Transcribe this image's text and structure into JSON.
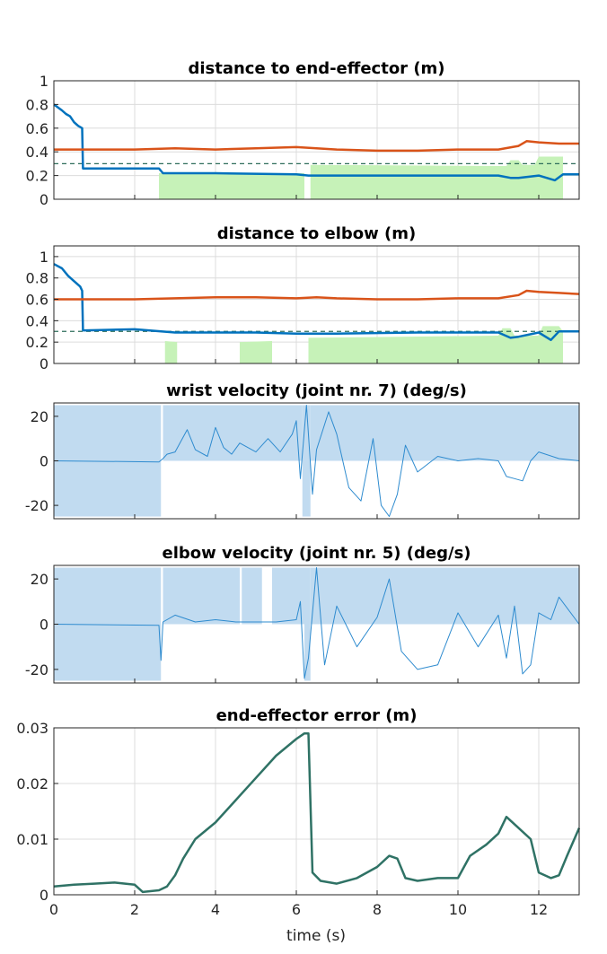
{
  "figure": {
    "xlabel": "time (s)",
    "xlim": [
      0,
      13
    ],
    "xticks": [
      0,
      2,
      4,
      6,
      8,
      10,
      12
    ]
  },
  "colors": {
    "blue": "#0072BD",
    "orange": "#D95319",
    "green_fill": "#c6f2b8",
    "blue_fill": "#c1dbf0",
    "blue_line": "#2e8bcf",
    "dashed": "#2f6e5b",
    "error_line": "#2f7265"
  },
  "chart_data": [
    {
      "type": "line",
      "title": "distance to end-effector (m)",
      "ylim": [
        0,
        1
      ],
      "yticks": [
        0,
        0.2,
        0.4,
        0.6,
        0.8,
        1
      ],
      "ytick_labels": [
        "0",
        "0.2",
        "0.4",
        "0.6",
        "0.8",
        "1"
      ],
      "grid": true,
      "threshold": 0.3,
      "shaded_regions": [
        {
          "x": [
            2.6,
            2.6,
            6.2,
            6.2
          ],
          "y": [
            0,
            0.22,
            0.22,
            0
          ]
        },
        {
          "x": [
            6.35,
            6.35,
            11.2,
            11.3,
            11.5,
            11.6,
            11.9,
            12.0,
            12.6,
            12.6
          ],
          "y": [
            0,
            0.29,
            0.28,
            0.33,
            0.33,
            0.29,
            0.29,
            0.36,
            0.36,
            0
          ]
        }
      ],
      "series": [
        {
          "x": [
            0,
            0.2,
            0.3,
            0.4,
            0.5,
            0.6,
            0.7,
            0.72,
            0.8,
            2.6,
            2.7,
            4,
            6,
            6.3,
            7,
            9,
            10,
            11,
            11.3,
            11.5,
            12,
            12.4,
            12.6,
            13
          ],
          "y": [
            0.8,
            0.75,
            0.72,
            0.7,
            0.65,
            0.62,
            0.6,
            0.26,
            0.26,
            0.26,
            0.22,
            0.22,
            0.21,
            0.2,
            0.2,
            0.2,
            0.2,
            0.2,
            0.18,
            0.18,
            0.2,
            0.16,
            0.21,
            0.21
          ]
        },
        {
          "x": [
            0,
            2,
            3,
            4,
            5,
            6,
            6.5,
            7,
            8,
            9,
            10,
            11,
            11.5,
            11.7,
            12,
            12.5,
            13
          ],
          "y": [
            0.42,
            0.42,
            0.43,
            0.42,
            0.43,
            0.44,
            0.43,
            0.42,
            0.41,
            0.41,
            0.42,
            0.42,
            0.45,
            0.49,
            0.48,
            0.47,
            0.47
          ]
        }
      ]
    },
    {
      "type": "line",
      "title": "distance to elbow (m)",
      "ylim": [
        0,
        1.1
      ],
      "yticks": [
        0,
        0.2,
        0.4,
        0.6,
        0.8,
        1
      ],
      "ytick_labels": [
        "0",
        "0.2",
        "0.4",
        "0.6",
        "0.8",
        "1"
      ],
      "grid": true,
      "threshold": 0.3,
      "shaded_regions": [
        {
          "x": [
            2.75,
            2.75,
            3.05,
            3.05
          ],
          "y": [
            0,
            0.21,
            0.2,
            0
          ]
        },
        {
          "x": [
            4.6,
            4.6,
            5.4,
            5.4
          ],
          "y": [
            0,
            0.2,
            0.21,
            0
          ]
        },
        {
          "x": [
            6.3,
            6.3,
            11.0,
            11.1,
            11.3,
            11.4,
            12.0,
            12.1,
            12.5,
            12.6,
            12.6
          ],
          "y": [
            0,
            0.24,
            0.26,
            0.33,
            0.33,
            0.26,
            0.26,
            0.35,
            0.35,
            0.3,
            0
          ]
        }
      ],
      "series": [
        {
          "x": [
            0,
            0.2,
            0.35,
            0.5,
            0.65,
            0.7,
            0.72,
            0.8,
            2,
            3,
            5,
            6,
            7,
            9,
            11,
            11.3,
            11.5,
            12,
            12.3,
            12.5,
            13
          ],
          "y": [
            0.93,
            0.89,
            0.82,
            0.77,
            0.72,
            0.68,
            0.31,
            0.31,
            0.32,
            0.29,
            0.29,
            0.28,
            0.28,
            0.29,
            0.29,
            0.24,
            0.25,
            0.29,
            0.22,
            0.3,
            0.3
          ]
        },
        {
          "x": [
            0,
            2,
            3,
            4,
            5,
            6,
            6.5,
            7,
            8,
            9,
            10,
            11,
            11.5,
            11.7,
            12,
            12.5,
            13
          ],
          "y": [
            0.6,
            0.6,
            0.61,
            0.62,
            0.62,
            0.61,
            0.62,
            0.61,
            0.6,
            0.6,
            0.61,
            0.61,
            0.64,
            0.68,
            0.67,
            0.66,
            0.65
          ]
        }
      ]
    },
    {
      "type": "area",
      "title": "wrist velocity (joint nr. 7) (deg/s)",
      "ylim": [
        -26,
        26
      ],
      "yticks": [
        -20,
        0,
        20
      ],
      "ytick_labels": [
        "-20",
        "0",
        "20"
      ],
      "grid": false,
      "bounds": [
        {
          "x": [
            0,
            2.65
          ],
          "upper": 25,
          "lower": -25
        },
        {
          "x": [
            2.7,
            6.15
          ],
          "upper": 25,
          "lower": 0
        },
        {
          "x": [
            6.15,
            6.35
          ],
          "upper": 25,
          "lower": -25
        },
        {
          "x": [
            6.35,
            13
          ],
          "upper": 25,
          "lower": 0
        }
      ],
      "series": [
        {
          "x": [
            0,
            2.6,
            2.7,
            2.8,
            3.0,
            3.3,
            3.5,
            3.8,
            4.0,
            4.2,
            4.4,
            4.6,
            5.0,
            5.3,
            5.6,
            5.9,
            6.0,
            6.1,
            6.25,
            6.4,
            6.5,
            6.8,
            7.0,
            7.3,
            7.6,
            7.9,
            8.1,
            8.3,
            8.5,
            8.7,
            9.0,
            9.5,
            10.0,
            10.5,
            11.0,
            11.2,
            11.4,
            11.6,
            11.8,
            12.0,
            12.5,
            13
          ],
          "y": [
            0,
            -0.5,
            1,
            3,
            4,
            14,
            5,
            2,
            15,
            6,
            3,
            8,
            4,
            10,
            4,
            12,
            18,
            -8,
            25,
            -15,
            5,
            22,
            12,
            -12,
            -18,
            10,
            -20,
            -25,
            -15,
            7,
            -5,
            2,
            0,
            1,
            0,
            -7,
            -8,
            -9,
            0,
            4,
            1,
            0
          ]
        }
      ]
    },
    {
      "type": "area",
      "title": "elbow velocity (joint nr. 5) (deg/s)",
      "ylim": [
        -26,
        26
      ],
      "yticks": [
        -20,
        0,
        20
      ],
      "ytick_labels": [
        "-20",
        "0",
        "20"
      ],
      "grid": false,
      "bounds": [
        {
          "x": [
            0,
            2.65
          ],
          "upper": 25,
          "lower": -25
        },
        {
          "x": [
            2.7,
            4.6
          ],
          "upper": 25,
          "lower": 0
        },
        {
          "x": [
            4.65,
            5.15
          ],
          "upper": 25,
          "lower": 0
        },
        {
          "x": [
            5.4,
            6.2
          ],
          "upper": 25,
          "lower": 0
        },
        {
          "x": [
            6.2,
            6.35
          ],
          "upper": 25,
          "lower": -25
        },
        {
          "x": [
            6.35,
            13
          ],
          "upper": 25,
          "lower": 0
        }
      ],
      "series": [
        {
          "x": [
            0,
            2.6,
            2.65,
            2.7,
            3.0,
            3.5,
            4.0,
            4.5,
            5.0,
            5.5,
            6.0,
            6.1,
            6.2,
            6.3,
            6.5,
            6.7,
            7.0,
            7.5,
            8.0,
            8.3,
            8.6,
            9.0,
            9.5,
            10.0,
            10.5,
            11.0,
            11.2,
            11.4,
            11.6,
            11.8,
            12.0,
            12.3,
            12.5,
            13
          ],
          "y": [
            0,
            -0.5,
            -16,
            1,
            4,
            1,
            2,
            1,
            1,
            1,
            2,
            10,
            -24,
            -15,
            25,
            -18,
            8,
            -10,
            3,
            20,
            -12,
            -20,
            -18,
            5,
            -10,
            4,
            -15,
            8,
            -22,
            -18,
            5,
            2,
            12,
            0
          ]
        }
      ]
    },
    {
      "type": "line",
      "title": "end-effector error (m)",
      "ylim": [
        0,
        0.03
      ],
      "yticks": [
        0,
        0.01,
        0.02,
        0.03
      ],
      "ytick_labels": [
        "0",
        "0.01",
        "0.02",
        "0.03"
      ],
      "grid": true,
      "series": [
        {
          "x": [
            0,
            0.5,
            1,
            1.5,
            2,
            2.2,
            2.6,
            2.8,
            3.0,
            3.2,
            3.5,
            4.0,
            4.5,
            5.0,
            5.5,
            6.0,
            6.2,
            6.3,
            6.4,
            6.6,
            7.0,
            7.5,
            8.0,
            8.3,
            8.5,
            8.7,
            9.0,
            9.5,
            10.0,
            10.3,
            10.7,
            11.0,
            11.2,
            11.5,
            11.8,
            12.0,
            12.3,
            12.5,
            12.7,
            13
          ],
          "y": [
            0.0015,
            0.0018,
            0.002,
            0.0022,
            0.0018,
            0.0005,
            0.0008,
            0.0015,
            0.0035,
            0.0065,
            0.01,
            0.013,
            0.017,
            0.021,
            0.025,
            0.028,
            0.029,
            0.029,
            0.004,
            0.0025,
            0.002,
            0.003,
            0.005,
            0.007,
            0.0065,
            0.003,
            0.0025,
            0.003,
            0.003,
            0.007,
            0.009,
            0.011,
            0.014,
            0.012,
            0.01,
            0.004,
            0.003,
            0.0035,
            0.007,
            0.012
          ]
        }
      ]
    }
  ]
}
